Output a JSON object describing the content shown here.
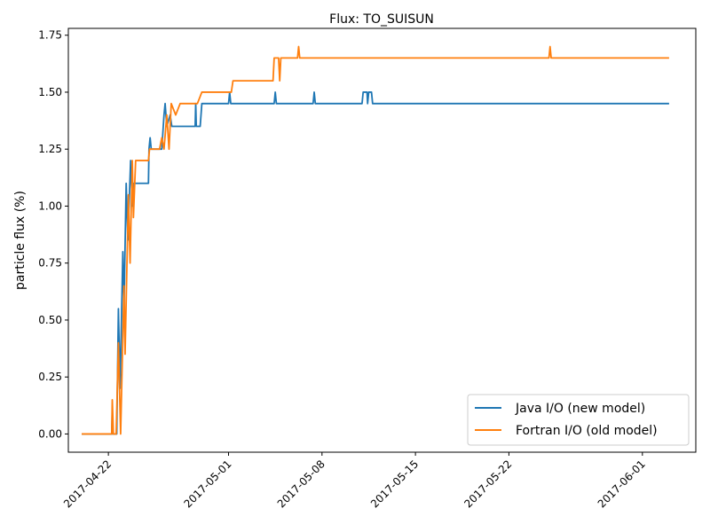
{
  "chart_data": {
    "type": "line",
    "title": "Flux: TO_SUISUN",
    "xlabel": "",
    "ylabel": "particle flux (%)",
    "xlim": [
      "2017-04-19",
      "2017-06-05"
    ],
    "ylim": [
      -0.08,
      1.78
    ],
    "x_ticks": [
      "2017-04-22",
      "2017-05-01",
      "2017-05-08",
      "2017-05-15",
      "2017-05-22",
      "2017-06-01"
    ],
    "y_ticks": [
      "0.00",
      "0.25",
      "0.50",
      "0.75",
      "1.00",
      "1.25",
      "1.50",
      "1.75"
    ],
    "y_tick_values": [
      0,
      0.25,
      0.5,
      0.75,
      1.0,
      1.25,
      1.5,
      1.75
    ],
    "grid": false,
    "legend_position": "bottom-right",
    "series": [
      {
        "name": "Java I/O (new model)",
        "color": "#1f77b4",
        "points": [
          [
            "2017-04-20 00:00",
            0.0
          ],
          [
            "2017-04-22 06:00",
            0.0
          ],
          [
            "2017-04-22 07:00",
            0.1
          ],
          [
            "2017-04-22 08:00",
            0.0
          ],
          [
            "2017-04-22 15:00",
            0.0
          ],
          [
            "2017-04-22 18:00",
            0.55
          ],
          [
            "2017-04-22 21:00",
            0.2
          ],
          [
            "2017-04-23 02:00",
            0.8
          ],
          [
            "2017-04-23 04:00",
            0.55
          ],
          [
            "2017-04-23 08:00",
            1.1
          ],
          [
            "2017-04-23 11:00",
            0.85
          ],
          [
            "2017-04-23 16:00",
            1.2
          ],
          [
            "2017-04-23 19:00",
            1.0
          ],
          [
            "2017-04-23 22:00",
            1.1
          ],
          [
            "2017-04-25 00:00",
            1.1
          ],
          [
            "2017-04-25 01:00",
            1.25
          ],
          [
            "2017-04-25 03:00",
            1.3
          ],
          [
            "2017-04-25 05:00",
            1.25
          ],
          [
            "2017-04-26 00:00",
            1.25
          ],
          [
            "2017-04-26 04:00",
            1.4
          ],
          [
            "2017-04-26 06:00",
            1.45
          ],
          [
            "2017-04-26 09:00",
            1.35
          ],
          [
            "2017-04-26 15:00",
            1.4
          ],
          [
            "2017-04-26 18:00",
            1.35
          ],
          [
            "2017-04-28 12:00",
            1.35
          ],
          [
            "2017-04-28 13:00",
            1.45
          ],
          [
            "2017-04-28 14:00",
            1.35
          ],
          [
            "2017-04-28 21:00",
            1.35
          ],
          [
            "2017-04-29 00:00",
            1.45
          ],
          [
            "2017-05-01 00:00",
            1.45
          ],
          [
            "2017-05-01 02:00",
            1.5
          ],
          [
            "2017-05-01 04:00",
            1.45
          ],
          [
            "2017-05-04 10:00",
            1.45
          ],
          [
            "2017-05-04 12:00",
            1.5
          ],
          [
            "2017-05-04 14:00",
            1.45
          ],
          [
            "2017-05-07 08:00",
            1.45
          ],
          [
            "2017-05-07 10:00",
            1.5
          ],
          [
            "2017-05-07 12:00",
            1.45
          ],
          [
            "2017-05-11 00:00",
            1.45
          ],
          [
            "2017-05-11 02:00",
            1.5
          ],
          [
            "2017-05-11 09:00",
            1.5
          ],
          [
            "2017-05-11 10:00",
            1.45
          ],
          [
            "2017-05-11 12:00",
            1.5
          ],
          [
            "2017-05-11 17:00",
            1.5
          ],
          [
            "2017-05-11 19:00",
            1.45
          ],
          [
            "2017-06-03 00:00",
            1.45
          ]
        ]
      },
      {
        "name": "Fortran I/O (old model)",
        "color": "#ff7f0e",
        "points": [
          [
            "2017-04-20 00:00",
            0.0
          ],
          [
            "2017-04-22 06:00",
            0.0
          ],
          [
            "2017-04-22 07:00",
            0.15
          ],
          [
            "2017-04-22 09:00",
            0.0
          ],
          [
            "2017-04-22 14:00",
            0.0
          ],
          [
            "2017-04-22 18:00",
            0.4
          ],
          [
            "2017-04-22 22:00",
            0.0
          ],
          [
            "2017-04-23 04:00",
            0.65
          ],
          [
            "2017-04-23 06:00",
            0.35
          ],
          [
            "2017-04-23 12:00",
            1.05
          ],
          [
            "2017-04-23 15:00",
            0.75
          ],
          [
            "2017-04-23 19:00",
            1.2
          ],
          [
            "2017-04-23 21:00",
            0.95
          ],
          [
            "2017-04-24 01:00",
            1.2
          ],
          [
            "2017-04-25 00:00",
            1.2
          ],
          [
            "2017-04-25 02:00",
            1.25
          ],
          [
            "2017-04-25 20:00",
            1.25
          ],
          [
            "2017-04-26 00:00",
            1.3
          ],
          [
            "2017-04-26 04:00",
            1.25
          ],
          [
            "2017-04-26 09:00",
            1.4
          ],
          [
            "2017-04-26 13:00",
            1.25
          ],
          [
            "2017-04-26 17:00",
            1.45
          ],
          [
            "2017-04-27 01:00",
            1.4
          ],
          [
            "2017-04-27 09:00",
            1.45
          ],
          [
            "2017-04-28 16:00",
            1.45
          ],
          [
            "2017-04-29 00:00",
            1.5
          ],
          [
            "2017-05-01 05:00",
            1.5
          ],
          [
            "2017-05-01 08:00",
            1.55
          ],
          [
            "2017-05-04 08:00",
            1.55
          ],
          [
            "2017-05-04 10:00",
            1.65
          ],
          [
            "2017-05-04 18:00",
            1.65
          ],
          [
            "2017-05-04 20:00",
            1.55
          ],
          [
            "2017-05-04 22:00",
            1.65
          ],
          [
            "2017-05-06 04:00",
            1.65
          ],
          [
            "2017-05-06 06:00",
            1.7
          ],
          [
            "2017-05-06 08:00",
            1.65
          ],
          [
            "2017-05-25 00:00",
            1.65
          ],
          [
            "2017-05-25 02:00",
            1.7
          ],
          [
            "2017-05-25 04:00",
            1.65
          ],
          [
            "2017-06-03 00:00",
            1.65
          ]
        ]
      }
    ]
  }
}
